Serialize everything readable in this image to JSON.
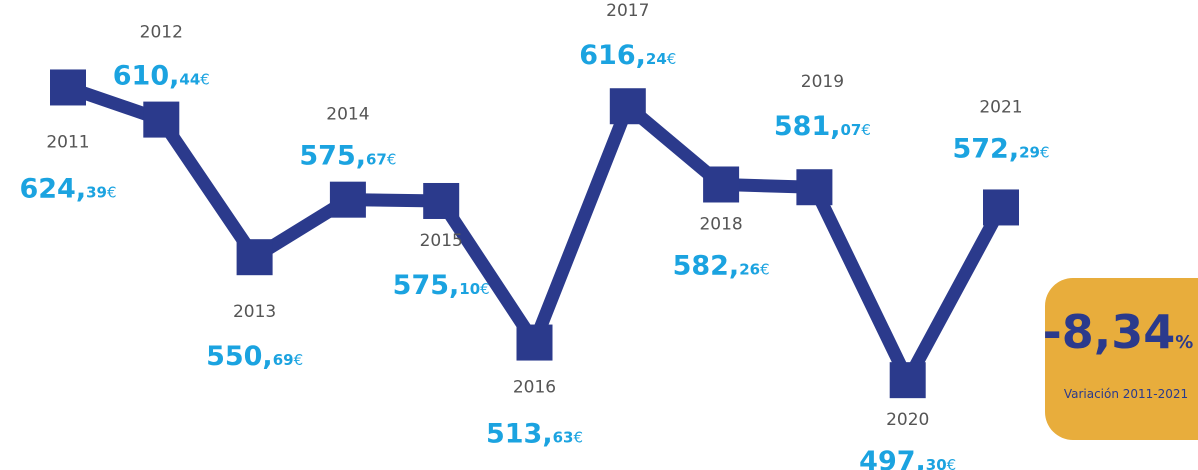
{
  "chart_data": {
    "type": "line",
    "categories": [
      "2011",
      "2012",
      "2013",
      "2014",
      "2015",
      "2016",
      "2017",
      "2018",
      "2019",
      "2020",
      "2021"
    ],
    "values": [
      624.39,
      610.44,
      550.69,
      575.67,
      575.1,
      513.63,
      616.24,
      582.26,
      581.07,
      497.3,
      572.29
    ],
    "value_labels": [
      "624,39€",
      "610,44€",
      "550,69€",
      "575,67€",
      "575,10€",
      "513,63€",
      "616,24€",
      "582,26€",
      "581,07€",
      "497,30€",
      "572,29€"
    ],
    "color": "#2b3a8c",
    "ylim": [
      480,
      645
    ],
    "badge": {
      "text": "-8,34%",
      "caption": "Variación 2011-2021"
    }
  }
}
